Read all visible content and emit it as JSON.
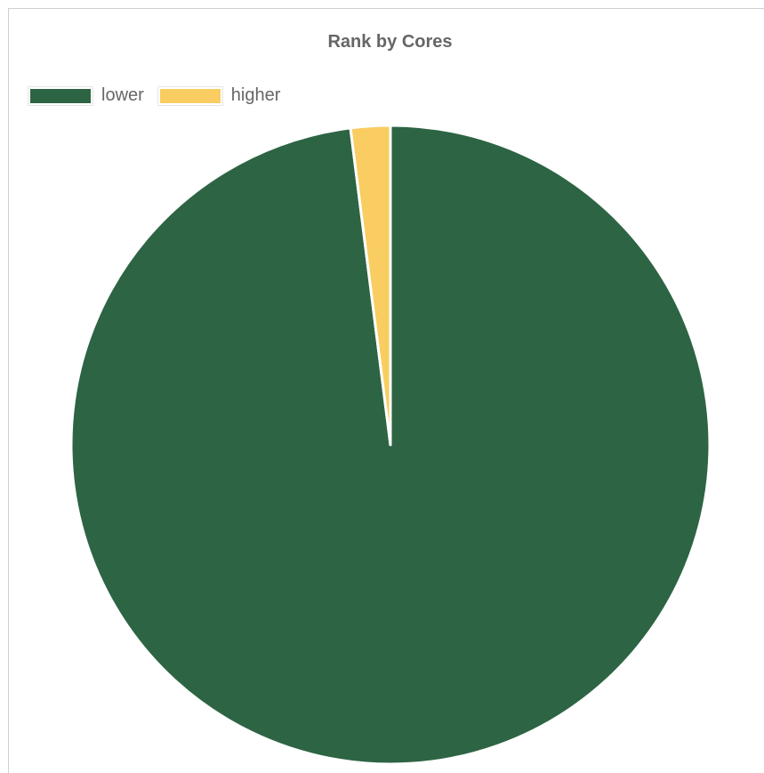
{
  "chart_data": {
    "type": "pie",
    "title": "Rank by Cores",
    "legend_position": "top-left",
    "series": [
      {
        "categories": [
          "lower",
          "higher"
        ],
        "values": [
          98,
          2
        ],
        "colors": [
          "#2d6444",
          "#f9cd62"
        ]
      }
    ],
    "start_angle": "top",
    "direction": "clockwise",
    "slice_border_color": "#ffffff"
  }
}
